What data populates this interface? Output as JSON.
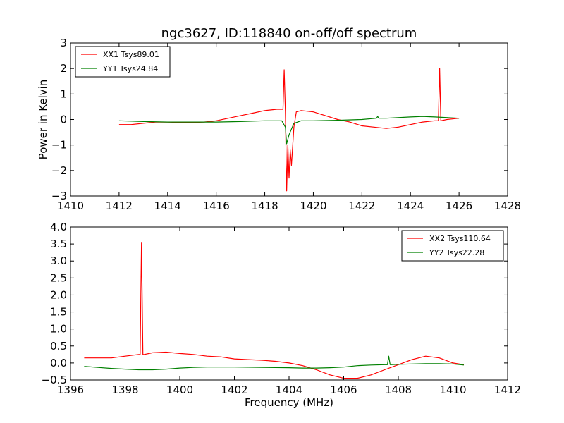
{
  "chart_data": [
    {
      "type": "line",
      "title": "ngc3627, ID:118840 on-off/off spectrum",
      "xlabel": "",
      "ylabel": "Power in Kelvin",
      "xlim": [
        1410,
        1428
      ],
      "ylim": [
        -3,
        3
      ],
      "xticks": [
        "1410",
        "1412",
        "1414",
        "1416",
        "1418",
        "1420",
        "1422",
        "1424",
        "1426",
        "1428"
      ],
      "yticks": [
        "−3",
        "−2",
        "−1",
        "0",
        "1",
        "2",
        "3"
      ],
      "legend_position": "top-left",
      "series": [
        {
          "name": "XX1 Tsys89.01",
          "color": "#ff0000",
          "x": [
            1412.0,
            1412.5,
            1413.0,
            1413.5,
            1414.0,
            1414.5,
            1415.0,
            1415.5,
            1416.0,
            1416.5,
            1417.0,
            1417.5,
            1418.0,
            1418.5,
            1418.75,
            1418.8,
            1418.85,
            1418.9,
            1418.95,
            1419.0,
            1419.05,
            1419.1,
            1419.2,
            1419.3,
            1419.5,
            1420.0,
            1420.5,
            1421.0,
            1421.5,
            1422.0,
            1422.5,
            1423.0,
            1423.5,
            1424.0,
            1424.5,
            1425.0,
            1425.15,
            1425.2,
            1425.25,
            1425.5,
            1426.0
          ],
          "y": [
            -0.2,
            -0.2,
            -0.15,
            -0.1,
            -0.1,
            -0.12,
            -0.12,
            -0.1,
            -0.05,
            0.05,
            0.15,
            0.25,
            0.35,
            0.4,
            0.4,
            1.95,
            0.3,
            -2.8,
            -1.0,
            -2.3,
            -1.2,
            -1.8,
            -0.3,
            0.3,
            0.35,
            0.3,
            0.15,
            0.0,
            -0.1,
            -0.25,
            -0.3,
            -0.35,
            -0.3,
            -0.2,
            -0.1,
            -0.05,
            -0.05,
            2.0,
            -0.05,
            0.0,
            0.05
          ]
        },
        {
          "name": "YY1 Tsys24.84",
          "color": "#008000",
          "x": [
            1412.0,
            1413.0,
            1414.0,
            1415.0,
            1416.0,
            1417.0,
            1418.0,
            1418.7,
            1418.85,
            1418.9,
            1419.0,
            1419.2,
            1419.5,
            1420.0,
            1421.0,
            1422.0,
            1422.6,
            1422.65,
            1422.7,
            1423.0,
            1424.0,
            1424.5,
            1425.0,
            1426.0
          ],
          "y": [
            -0.05,
            -0.08,
            -0.1,
            -0.1,
            -0.1,
            -0.08,
            -0.05,
            -0.05,
            -0.3,
            -0.95,
            -0.6,
            -0.15,
            -0.05,
            -0.05,
            -0.03,
            0.0,
            0.05,
            0.12,
            0.05,
            0.05,
            0.1,
            0.12,
            0.1,
            0.05
          ]
        }
      ]
    },
    {
      "type": "line",
      "title": "",
      "xlabel": "Frequency (MHz)",
      "ylabel": "",
      "xlim": [
        1396,
        1412
      ],
      "ylim": [
        -0.5,
        4.0
      ],
      "xticks": [
        "1396",
        "1398",
        "1400",
        "1402",
        "1404",
        "1406",
        "1408",
        "1410",
        "1412"
      ],
      "yticks": [
        "−0.5",
        "0.0",
        "0.5",
        "1.0",
        "1.5",
        "2.0",
        "2.5",
        "3.0",
        "3.5",
        "4.0"
      ],
      "legend_position": "top-right",
      "series": [
        {
          "name": "XX2 Tsys110.64",
          "color": "#ff0000",
          "x": [
            1396.5,
            1397.0,
            1397.5,
            1398.0,
            1398.5,
            1398.55,
            1398.6,
            1398.65,
            1398.7,
            1399.0,
            1399.5,
            1400.0,
            1400.5,
            1401.0,
            1401.5,
            1402.0,
            1402.5,
            1403.0,
            1403.5,
            1404.0,
            1404.5,
            1405.0,
            1405.5,
            1406.0,
            1406.5,
            1407.0,
            1407.5,
            1408.0,
            1408.5,
            1409.0,
            1409.5,
            1410.0,
            1410.4
          ],
          "y": [
            0.15,
            0.15,
            0.15,
            0.2,
            0.25,
            0.25,
            3.55,
            0.25,
            0.25,
            0.3,
            0.32,
            0.28,
            0.25,
            0.2,
            0.18,
            0.12,
            0.1,
            0.08,
            0.05,
            0.0,
            -0.08,
            -0.2,
            -0.35,
            -0.45,
            -0.45,
            -0.35,
            -0.2,
            -0.05,
            0.1,
            0.2,
            0.15,
            0.0,
            -0.05
          ]
        },
        {
          "name": "YY2 Tsys22.28",
          "color": "#008000",
          "x": [
            1396.5,
            1397.0,
            1397.5,
            1398.0,
            1398.5,
            1399.0,
            1399.5,
            1400.0,
            1400.5,
            1401.0,
            1402.0,
            1403.0,
            1404.0,
            1404.5,
            1405.0,
            1405.5,
            1406.0,
            1406.5,
            1407.0,
            1407.5,
            1407.6,
            1407.65,
            1407.7,
            1408.0,
            1408.5,
            1409.0,
            1409.5,
            1410.0,
            1410.4
          ],
          "y": [
            -0.1,
            -0.13,
            -0.16,
            -0.18,
            -0.2,
            -0.2,
            -0.18,
            -0.15,
            -0.13,
            -0.12,
            -0.12,
            -0.13,
            -0.14,
            -0.15,
            -0.15,
            -0.14,
            -0.12,
            -0.08,
            -0.06,
            -0.05,
            -0.05,
            0.2,
            -0.05,
            -0.04,
            -0.03,
            -0.02,
            -0.02,
            -0.03,
            -0.06
          ]
        }
      ]
    }
  ]
}
